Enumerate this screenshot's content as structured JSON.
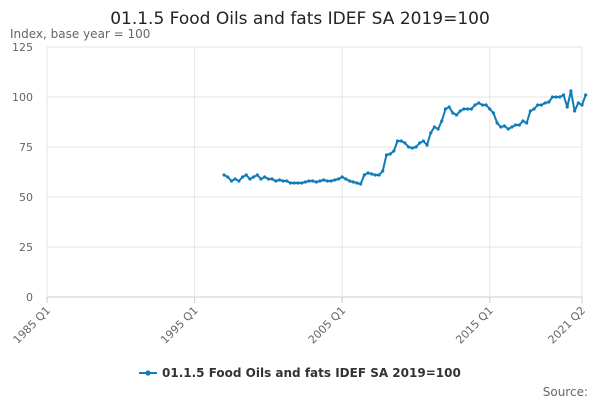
{
  "chart_data": {
    "type": "line",
    "title": "01.1.5 Food Oils and fats IDEF SA 2019=100",
    "ylabel": "Index, base year = 100",
    "xlabel": "",
    "ylim": [
      0,
      125
    ],
    "yticks": [
      0,
      25,
      50,
      75,
      100,
      125
    ],
    "xlim": [
      1985,
      2021.25
    ],
    "xticks": [
      {
        "label": "1985 Q1",
        "value": 1985
      },
      {
        "label": "1995 Q1",
        "value": 1995
      },
      {
        "label": "2005 Q1",
        "value": 2005
      },
      {
        "label": "2015 Q1",
        "value": 2015
      },
      {
        "label": "2021 Q2",
        "value": 2021.25
      }
    ],
    "grid": true,
    "legend_position": "bottom",
    "source_label": "Source:",
    "series": [
      {
        "name": "01.1.5 Food Oils and fats IDEF SA 2019=100",
        "color": "#0f7bb8",
        "marker": "circle",
        "points": [
          [
            1997.0,
            61
          ],
          [
            1997.25,
            60
          ],
          [
            1997.5,
            58
          ],
          [
            1997.75,
            59
          ],
          [
            1998.0,
            58
          ],
          [
            1998.25,
            60
          ],
          [
            1998.5,
            61
          ],
          [
            1998.75,
            59
          ],
          [
            1999.0,
            60
          ],
          [
            1999.25,
            61
          ],
          [
            1999.5,
            59
          ],
          [
            1999.75,
            60
          ],
          [
            2000.0,
            59
          ],
          [
            2000.25,
            59
          ],
          [
            2000.5,
            58
          ],
          [
            2000.75,
            58.5
          ],
          [
            2001.0,
            58
          ],
          [
            2001.25,
            58
          ],
          [
            2001.5,
            57
          ],
          [
            2001.75,
            57
          ],
          [
            2002.0,
            57
          ],
          [
            2002.25,
            57
          ],
          [
            2002.5,
            57.5
          ],
          [
            2002.75,
            58
          ],
          [
            2003.0,
            58
          ],
          [
            2003.25,
            57.5
          ],
          [
            2003.5,
            58
          ],
          [
            2003.75,
            58.5
          ],
          [
            2004.0,
            58
          ],
          [
            2004.25,
            58
          ],
          [
            2004.5,
            58.5
          ],
          [
            2004.75,
            59
          ],
          [
            2005.0,
            60
          ],
          [
            2005.25,
            59
          ],
          [
            2005.5,
            58
          ],
          [
            2005.75,
            57.5
          ],
          [
            2006.0,
            57
          ],
          [
            2006.25,
            56.5
          ],
          [
            2006.5,
            61
          ],
          [
            2006.75,
            62
          ],
          [
            2007.0,
            61.5
          ],
          [
            2007.25,
            61
          ],
          [
            2007.5,
            61
          ],
          [
            2007.75,
            63
          ],
          [
            2008.0,
            71
          ],
          [
            2008.25,
            71.5
          ],
          [
            2008.5,
            73
          ],
          [
            2008.75,
            78
          ],
          [
            2009.0,
            78
          ],
          [
            2009.25,
            77
          ],
          [
            2009.5,
            75
          ],
          [
            2009.75,
            74.5
          ],
          [
            2010.0,
            75
          ],
          [
            2010.25,
            77
          ],
          [
            2010.5,
            78
          ],
          [
            2010.75,
            76
          ],
          [
            2011.0,
            82
          ],
          [
            2011.25,
            85
          ],
          [
            2011.5,
            84
          ],
          [
            2011.75,
            88
          ],
          [
            2012.0,
            94
          ],
          [
            2012.25,
            95
          ],
          [
            2012.5,
            92
          ],
          [
            2012.75,
            91
          ],
          [
            2013.0,
            93
          ],
          [
            2013.25,
            94
          ],
          [
            2013.5,
            94
          ],
          [
            2013.75,
            94
          ],
          [
            2014.0,
            96
          ],
          [
            2014.25,
            97
          ],
          [
            2014.5,
            96
          ],
          [
            2014.75,
            96
          ],
          [
            2015.0,
            94
          ],
          [
            2015.25,
            92
          ],
          [
            2015.5,
            87
          ],
          [
            2015.75,
            85
          ],
          [
            2016.0,
            85.5
          ],
          [
            2016.25,
            84
          ],
          [
            2016.5,
            85
          ],
          [
            2016.75,
            86
          ],
          [
            2017.0,
            86
          ],
          [
            2017.25,
            88
          ],
          [
            2017.5,
            87
          ],
          [
            2017.75,
            93
          ],
          [
            2018.0,
            94
          ],
          [
            2018.25,
            96
          ],
          [
            2018.5,
            96
          ],
          [
            2018.75,
            97
          ],
          [
            2019.0,
            97.5
          ],
          [
            2019.25,
            100
          ],
          [
            2019.5,
            100
          ],
          [
            2019.75,
            100
          ],
          [
            2020.0,
            101
          ],
          [
            2020.25,
            95
          ],
          [
            2020.5,
            103
          ],
          [
            2020.75,
            93
          ],
          [
            2021.0,
            97
          ],
          [
            2021.25,
            96
          ],
          [
            2021.5,
            101
          ]
        ]
      }
    ]
  }
}
